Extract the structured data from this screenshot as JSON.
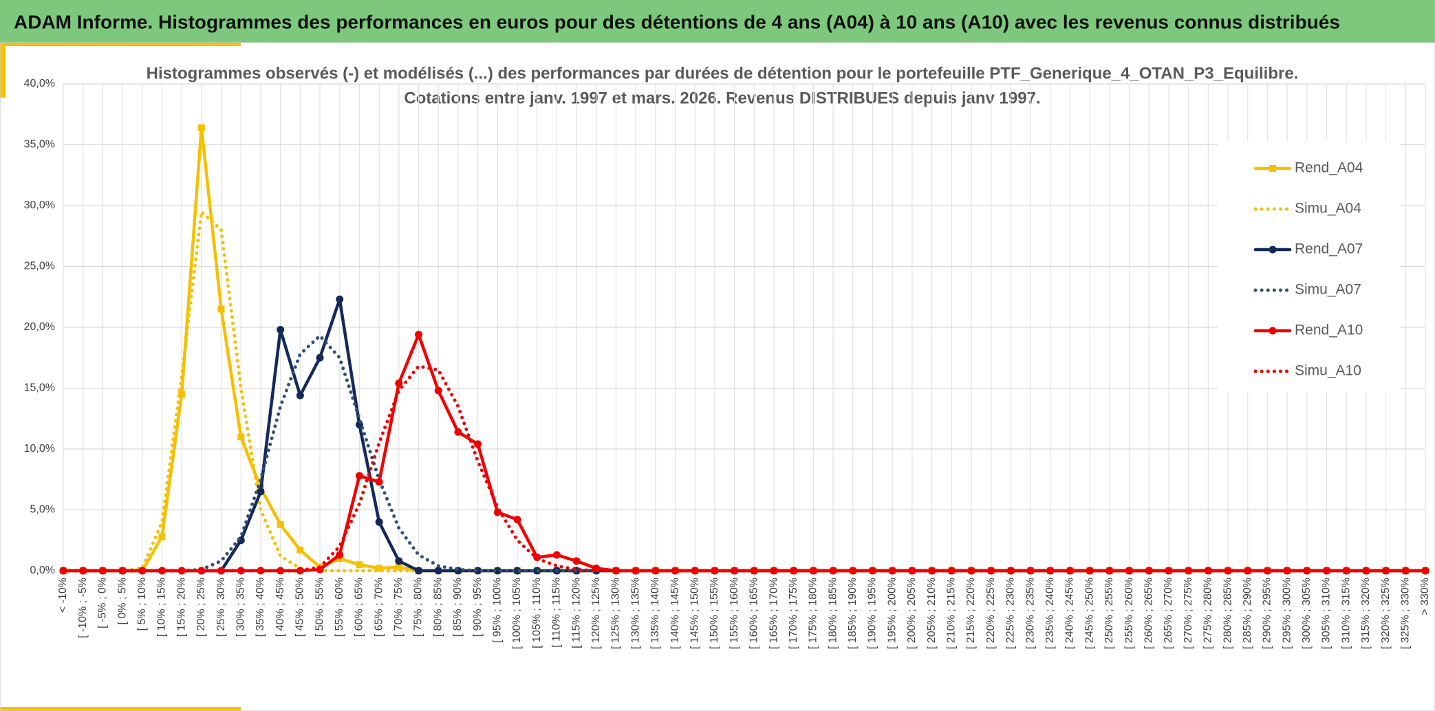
{
  "header": {
    "title": "ADAM Informe. Histogrammes des performances en euros pour des détentions de 4 ans (A04) à 10 ans (A10) avec les revenus connus distribués"
  },
  "chart_data": {
    "type": "line",
    "title": [
      "Histogrammes observés (-) et modélisés (...) des performances par durées de détention pour le portefeuille PTF_Generique_4_OTAN_P3_Equilibre.",
      "Cotations entre janv. 1997 et mars. 2026. Revenus DISTRIBUES depuis janv 1997."
    ],
    "categories": [
      "< -10%",
      "[ -10% ; -5%",
      "[ -5% ; 0%",
      "[ 0% ; 5%",
      "[ 5% ; 10%",
      "[ 10% ; 15%",
      "[ 15% ; 20%",
      "[ 20% ; 25%",
      "[ 25% ; 30%",
      "[ 30% ; 35%",
      "[ 35% ; 40%",
      "[ 40% ; 45%",
      "[ 45% ; 50%",
      "[ 50% ; 55%",
      "[ 55% ; 60%",
      "[ 60% ; 65%",
      "[ 65% ; 70%",
      "[ 70% ; 75%",
      "[ 75% ; 80%",
      "[ 80% ; 85%",
      "[ 85% ; 90%",
      "[ 90% ; 95%",
      "[ 95% ; 100%",
      "[ 100% ; 105%",
      "[ 105% ; 110%",
      "[ 110% ; 115%",
      "[ 115% ; 120%",
      "[ 120% ; 125%",
      "[ 125% ; 130%",
      "[ 130% ; 135%",
      "[ 135% ; 140%",
      "[ 140% ; 145%",
      "[ 145% ; 150%",
      "[ 150% ; 155%",
      "[ 155% ; 160%",
      "[ 160% ; 165%",
      "[ 165% ; 170%",
      "[ 170% ; 175%",
      "[ 175% ; 180%",
      "[ 180% ; 185%",
      "[ 185% ; 190%",
      "[ 190% ; 195%",
      "[ 195% ; 200%",
      "[ 200% ; 205%",
      "[ 205% ; 210%",
      "[ 210% ; 215%",
      "[ 215% ; 220%",
      "[ 220% ; 225%",
      "[ 225% ; 230%",
      "[ 230% ; 235%",
      "[ 235% ; 240%",
      "[ 240% ; 245%",
      "[ 245% ; 250%",
      "[ 250% ; 255%",
      "[ 255% ; 260%",
      "[ 260% ; 265%",
      "[ 265% ; 270%",
      "[ 270% ; 275%",
      "[ 275% ; 280%",
      "[ 280% ; 285%",
      "[ 285% ; 290%",
      "[ 290% ; 295%",
      "[ 295% ; 300%",
      "[ 300% ; 305%",
      "[ 305% ; 310%",
      "[ 310% ; 315%",
      "[ 315% ; 320%",
      "[ 320% ; 325%",
      "[ 325% ; 330%",
      "> 330%"
    ],
    "series": [
      {
        "name": "Rend_A04",
        "color": "#f5c000",
        "marker": "square",
        "dash": "solid",
        "values": [
          0,
          0,
          0,
          0,
          0,
          2.8,
          14.5,
          36.4,
          21.5,
          11,
          6.8,
          3.8,
          1.7,
          0.3,
          1,
          0.5,
          0.2,
          0.3,
          0,
          0,
          0,
          0,
          0,
          0,
          0,
          0,
          0,
          0,
          0,
          0,
          0,
          0,
          0,
          0,
          0,
          0,
          0,
          0,
          0,
          0,
          0,
          0,
          0,
          0,
          0,
          0,
          0,
          0,
          0,
          0,
          0,
          0,
          0,
          0,
          0,
          0,
          0,
          0,
          0,
          0,
          0,
          0,
          0,
          0,
          0,
          0,
          0,
          0,
          0,
          0
        ]
      },
      {
        "name": "Simu_A04",
        "color": "#f5c000",
        "marker": "none",
        "dash": "dotted",
        "values": [
          0,
          0,
          0,
          0,
          0.2,
          4,
          16,
          29.5,
          28,
          15,
          5,
          1.2,
          0.2,
          0,
          0,
          0,
          0,
          0,
          0,
          0,
          0,
          0,
          0,
          0,
          0,
          0,
          0,
          0,
          0,
          0,
          0,
          0,
          0,
          0,
          0,
          0,
          0,
          0,
          0,
          0,
          0,
          0,
          0,
          0,
          0,
          0,
          0,
          0,
          0,
          0,
          0,
          0,
          0,
          0,
          0,
          0,
          0,
          0,
          0,
          0,
          0,
          0,
          0,
          0,
          0,
          0,
          0,
          0,
          0,
          0
        ]
      },
      {
        "name": "Rend_A07",
        "color": "#13295a",
        "marker": "circle",
        "dash": "solid",
        "values": [
          0,
          0,
          0,
          0,
          0,
          0,
          0,
          0,
          0,
          2.5,
          6.5,
          19.8,
          14.4,
          17.5,
          22.3,
          12,
          4,
          0.8,
          0,
          0,
          0,
          0,
          0,
          0,
          0,
          0,
          0,
          0,
          0,
          0,
          0,
          0,
          0,
          0,
          0,
          0,
          0,
          0,
          0,
          0,
          0,
          0,
          0,
          0,
          0,
          0,
          0,
          0,
          0,
          0,
          0,
          0,
          0,
          0,
          0,
          0,
          0,
          0,
          0,
          0,
          0,
          0,
          0,
          0,
          0,
          0,
          0,
          0,
          0,
          0
        ]
      },
      {
        "name": "Simu_A07",
        "color": "#2e4f7a",
        "marker": "none",
        "dash": "dotted",
        "values": [
          0,
          0,
          0,
          0,
          0,
          0,
          0,
          0.1,
          0.8,
          2.8,
          7.5,
          13.5,
          17.8,
          19.3,
          17.5,
          12.5,
          7.5,
          3.5,
          1.3,
          0.4,
          0.1,
          0,
          0,
          0,
          0,
          0,
          0,
          0,
          0,
          0,
          0,
          0,
          0,
          0,
          0,
          0,
          0,
          0,
          0,
          0,
          0,
          0,
          0,
          0,
          0,
          0,
          0,
          0,
          0,
          0,
          0,
          0,
          0,
          0,
          0,
          0,
          0,
          0,
          0,
          0,
          0,
          0,
          0,
          0,
          0,
          0,
          0,
          0,
          0,
          0
        ]
      },
      {
        "name": "Rend_A10",
        "color": "#f00000",
        "marker": "circle",
        "dash": "solid",
        "values": [
          0,
          0,
          0,
          0,
          0,
          0,
          0,
          0,
          0,
          0,
          0,
          0,
          0,
          0.1,
          1.3,
          7.8,
          7.3,
          15.4,
          19.4,
          14.8,
          11.4,
          10.4,
          4.8,
          4.2,
          1.1,
          1.3,
          0.8,
          0.2,
          0,
          0,
          0,
          0,
          0,
          0,
          0,
          0,
          0,
          0,
          0,
          0,
          0,
          0,
          0,
          0,
          0,
          0,
          0,
          0,
          0,
          0,
          0,
          0,
          0,
          0,
          0,
          0,
          0,
          0,
          0,
          0,
          0,
          0,
          0,
          0,
          0,
          0,
          0,
          0,
          0,
          0
        ]
      },
      {
        "name": "Simu_A10",
        "color": "#f00000",
        "marker": "none",
        "dash": "dotted",
        "values": [
          0,
          0,
          0,
          0,
          0,
          0,
          0,
          0,
          0,
          0,
          0,
          0,
          0,
          0.3,
          2,
          5.5,
          10.5,
          14.8,
          16.8,
          16.5,
          13.5,
          9,
          5.2,
          2.5,
          1,
          0.4,
          0.1,
          0,
          0,
          0,
          0,
          0,
          0,
          0,
          0,
          0,
          0,
          0,
          0,
          0,
          0,
          0,
          0,
          0,
          0,
          0,
          0,
          0,
          0,
          0,
          0,
          0,
          0,
          0,
          0,
          0,
          0,
          0,
          0,
          0,
          0,
          0,
          0,
          0,
          0,
          0,
          0,
          0,
          0,
          0
        ]
      }
    ],
    "ylim": [
      0,
      40
    ],
    "yticks": [
      {
        "value": 0,
        "label": "0,0%"
      },
      {
        "value": 5,
        "label": "5,0%"
      },
      {
        "value": 10,
        "label": "10,0%"
      },
      {
        "value": 15,
        "label": "15,0%"
      },
      {
        "value": 20,
        "label": "20,0%"
      },
      {
        "value": 25,
        "label": "25,0%"
      },
      {
        "value": 30,
        "label": "30,0%"
      },
      {
        "value": 35,
        "label": "35,0%"
      },
      {
        "value": 40,
        "label": "40,0%"
      }
    ],
    "grid": true,
    "legend": "right"
  }
}
